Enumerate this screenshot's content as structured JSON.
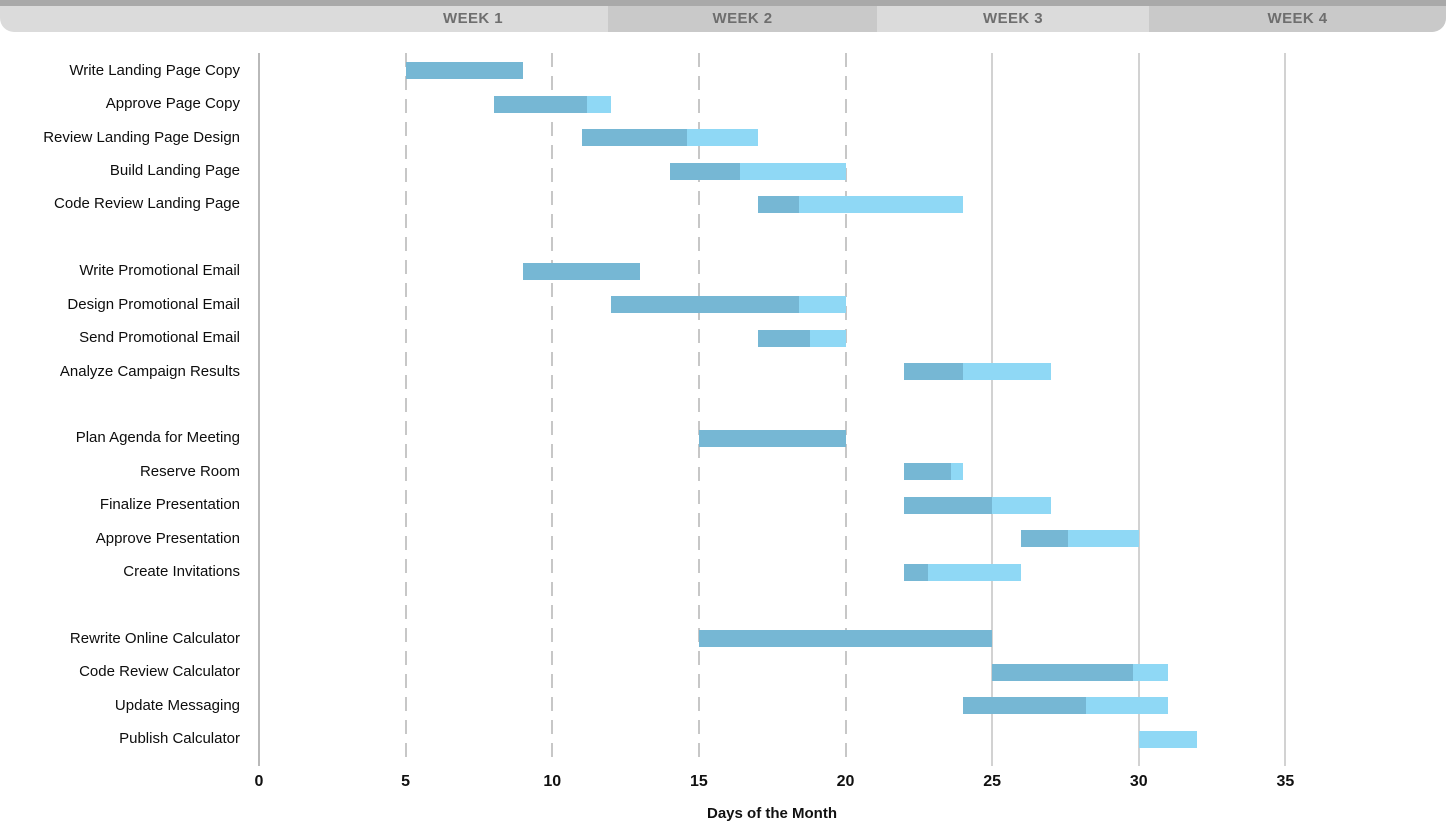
{
  "header": {
    "weeks": [
      "WEEK 1",
      "WEEK 2",
      "WEEK 3",
      "WEEK 4"
    ]
  },
  "chart_data": {
    "type": "bar",
    "subtype": "gantt",
    "title": "",
    "xlabel": "Days of the Month",
    "x_ticks": [
      0,
      5,
      10,
      15,
      20,
      25,
      30,
      35
    ],
    "xlim": [
      0,
      40
    ],
    "grid": "vertical",
    "legend": "none",
    "week_headers": [
      "WEEK 1",
      "WEEK 2",
      "WEEK 3",
      "WEEK 4"
    ],
    "colors": {
      "bar_complete": "#76b7d4",
      "bar_remaining": "#8fd8f5",
      "header_light": "#dbdbdb",
      "header_dark": "#c9c9c9",
      "header_strip": "#a9a9a9",
      "week_text": "#6e6e6e",
      "gridline_dashed": "#c7c7c7",
      "gridline_solid": "#d2d2d2"
    },
    "sections": [
      {
        "name": "landing-page",
        "tasks": [
          {
            "label": "Write Landing Page Copy",
            "start": 5,
            "end": 9,
            "percent_complete": 100
          },
          {
            "label": "Approve Page Copy",
            "start": 8,
            "end": 12,
            "percent_complete": 80
          },
          {
            "label": "Review Landing Page Design",
            "start": 11,
            "end": 17,
            "percent_complete": 60
          },
          {
            "label": "Build Landing Page",
            "start": 14,
            "end": 20,
            "percent_complete": 40
          },
          {
            "label": "Code Review Landing Page",
            "start": 17,
            "end": 24,
            "percent_complete": 20
          }
        ]
      },
      {
        "name": "promotional-email",
        "tasks": [
          {
            "label": "Write Promotional Email",
            "start": 9,
            "end": 13,
            "percent_complete": 100
          },
          {
            "label": "Design Promotional Email",
            "start": 12,
            "end": 20,
            "percent_complete": 80
          },
          {
            "label": "Send Promotional Email",
            "start": 17,
            "end": 20,
            "percent_complete": 60
          },
          {
            "label": "Analyze Campaign Results",
            "start": 22,
            "end": 27,
            "percent_complete": 40
          }
        ]
      },
      {
        "name": "meeting",
        "tasks": [
          {
            "label": "Plan Agenda for Meeting",
            "start": 15,
            "end": 20,
            "percent_complete": 100
          },
          {
            "label": "Reserve Room",
            "start": 22,
            "end": 24,
            "percent_complete": 80
          },
          {
            "label": "Finalize Presentation",
            "start": 22,
            "end": 27,
            "percent_complete": 60
          },
          {
            "label": "Approve Presentation",
            "start": 26,
            "end": 30,
            "percent_complete": 40
          },
          {
            "label": "Create Invitations",
            "start": 22,
            "end": 26,
            "percent_complete": 20
          }
        ]
      },
      {
        "name": "calculator",
        "tasks": [
          {
            "label": "Rewrite Online Calculator",
            "start": 15,
            "end": 25,
            "percent_complete": 100
          },
          {
            "label": "Code Review Calculator",
            "start": 25,
            "end": 31,
            "percent_complete": 80
          },
          {
            "label": "Update Messaging",
            "start": 24,
            "end": 31,
            "percent_complete": 60
          },
          {
            "label": "Publish Calculator",
            "start": 30,
            "end": 32,
            "percent_complete": 0
          }
        ]
      }
    ]
  }
}
